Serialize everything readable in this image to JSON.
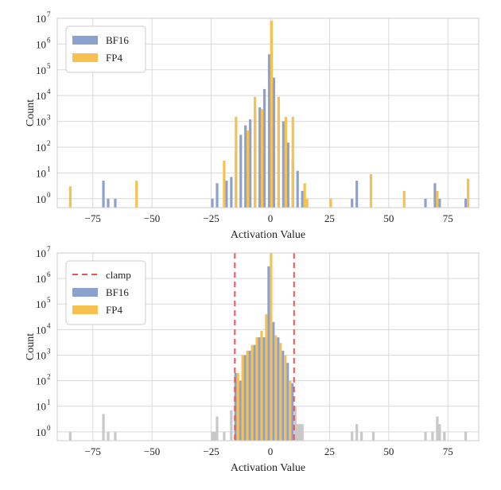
{
  "colors": {
    "bf16": "#8ba2d1",
    "fp4": "#f7c14f",
    "clipped": "#c8c8c8",
    "clamp": "#ef5350",
    "grid": "#d9d9d9",
    "frame": "#cccccc"
  },
  "chart_data": [
    {
      "type": "bar",
      "scale_y": "log",
      "xlabel": "Activation Value",
      "ylabel": "Count",
      "xlim": [
        -90,
        88
      ],
      "ylim": [
        0.45,
        10000000
      ],
      "grid": true,
      "legend": "top-left",
      "xticks": [
        -75,
        -50,
        -25,
        0,
        25,
        50,
        75
      ],
      "yticks": [
        {
          "value": 1,
          "base": "10",
          "exp": "0"
        },
        {
          "value": 10,
          "base": "10",
          "exp": "1"
        },
        {
          "value": 100,
          "base": "10",
          "exp": "2"
        },
        {
          "value": 1000,
          "base": "10",
          "exp": "3"
        },
        {
          "value": 10000,
          "base": "10",
          "exp": "4"
        },
        {
          "value": 100000,
          "base": "10",
          "exp": "5"
        },
        {
          "value": 1000000,
          "base": "10",
          "exp": "6"
        },
        {
          "value": 10000000,
          "base": "10",
          "exp": "7"
        }
      ],
      "legend_items": [
        {
          "label": "BF16",
          "color_key": "bf16",
          "kind": "patch"
        },
        {
          "label": "FP4",
          "color_key": "fp4",
          "kind": "patch"
        }
      ],
      "series": [
        {
          "name": "BF16",
          "color_key": "bf16",
          "x": [
            -70.5,
            -68.5,
            -65.5,
            -24.5,
            -22.5,
            -18.5,
            -16.5,
            -14.5,
            -12.5,
            -10.5,
            -8.5,
            -6.5,
            -4.5,
            -2.5,
            -0.5,
            1.5,
            3.5,
            5.5,
            7.5,
            9.5,
            11.5,
            13.5,
            34.5,
            36.5,
            65.5,
            69.5,
            71.5,
            82.5
          ],
          "values": [
            5,
            1,
            1,
            1,
            4,
            5,
            7,
            70,
            300,
            700,
            1200,
            2500,
            3500,
            18000,
            400000,
            50000,
            3000,
            1000,
            150,
            30,
            12,
            2,
            1,
            5,
            1,
            4,
            1,
            1
          ]
        },
        {
          "name": "FP4",
          "color_key": "fp4",
          "x": [
            -84.5,
            -56.5,
            -19.5,
            -14.5,
            -9.5,
            -6.5,
            -3.5,
            0.5,
            3.5,
            6.5,
            9.5,
            14.5,
            15.5,
            25.5,
            42.5,
            56.5,
            70.5,
            83.5
          ],
          "values": [
            3,
            5,
            30,
            1500,
            450,
            9000,
            3000,
            8000000,
            9000,
            1500,
            1500,
            4,
            1,
            1,
            9,
            2,
            2,
            6
          ]
        }
      ]
    },
    {
      "type": "bar",
      "scale_y": "log",
      "xlabel": "Activation Value",
      "ylabel": "Count",
      "xlim": [
        -90,
        88
      ],
      "ylim": [
        0.45,
        10000000
      ],
      "grid": true,
      "legend": "top-left",
      "clamp": [
        -15,
        10
      ],
      "xticks": [
        -75,
        -50,
        -25,
        0,
        25,
        50,
        75
      ],
      "yticks": [
        {
          "value": 1,
          "base": "10",
          "exp": "0"
        },
        {
          "value": 10,
          "base": "10",
          "exp": "1"
        },
        {
          "value": 100,
          "base": "10",
          "exp": "2"
        },
        {
          "value": 1000,
          "base": "10",
          "exp": "3"
        },
        {
          "value": 10000,
          "base": "10",
          "exp": "4"
        },
        {
          "value": 100000,
          "base": "10",
          "exp": "5"
        },
        {
          "value": 1000000,
          "base": "10",
          "exp": "6"
        },
        {
          "value": 10000000,
          "base": "10",
          "exp": "7"
        }
      ],
      "legend_items": [
        {
          "label": "clamp",
          "color_key": "clamp",
          "kind": "dash"
        },
        {
          "label": "BF16",
          "color_key": "bf16",
          "kind": "patch"
        },
        {
          "label": "FP4",
          "color_key": "fp4",
          "kind": "patch"
        }
      ],
      "clipped": {
        "color_key": "clipped",
        "x": [
          -84.5,
          -70.5,
          -68.5,
          -65.5,
          -24.5,
          -23.5,
          -22.5,
          -19.5,
          -16.5,
          10.5,
          11.5,
          12.5,
          13.5,
          34.5,
          36.5,
          38.5,
          43.5,
          65.5,
          68.5,
          70.5,
          71.5,
          73.5,
          82.5
        ],
        "values": [
          1,
          5,
          1,
          1,
          1,
          1,
          4,
          1,
          7,
          10,
          2,
          2,
          2,
          1,
          2,
          1,
          1,
          1,
          1,
          4,
          2,
          1,
          1
        ]
      },
      "series": [
        {
          "name": "BF16",
          "color_key": "bf16",
          "x": [
            -14.7,
            -12.7,
            -10.7,
            -8.7,
            -6.7,
            -4.7,
            -2.7,
            -0.7,
            1.3,
            3.3,
            5.3,
            7.3,
            9.3
          ],
          "values": [
            200,
            100,
            1000,
            1500,
            2500,
            5000,
            5000,
            3000000,
            20000,
            5000,
            1500,
            500,
            80
          ]
        },
        {
          "name": "FP4",
          "color_key": "fp4",
          "x": [
            -13.7,
            -11.7,
            -9.7,
            -7.7,
            -5.7,
            -3.7,
            -1.7,
            0.3,
            2.3,
            4.3,
            6.3,
            8.3
          ],
          "values": [
            200,
            1000,
            1500,
            2500,
            5000,
            9000,
            40000,
            10000000,
            6000,
            3000,
            1000,
            100
          ]
        }
      ]
    }
  ]
}
